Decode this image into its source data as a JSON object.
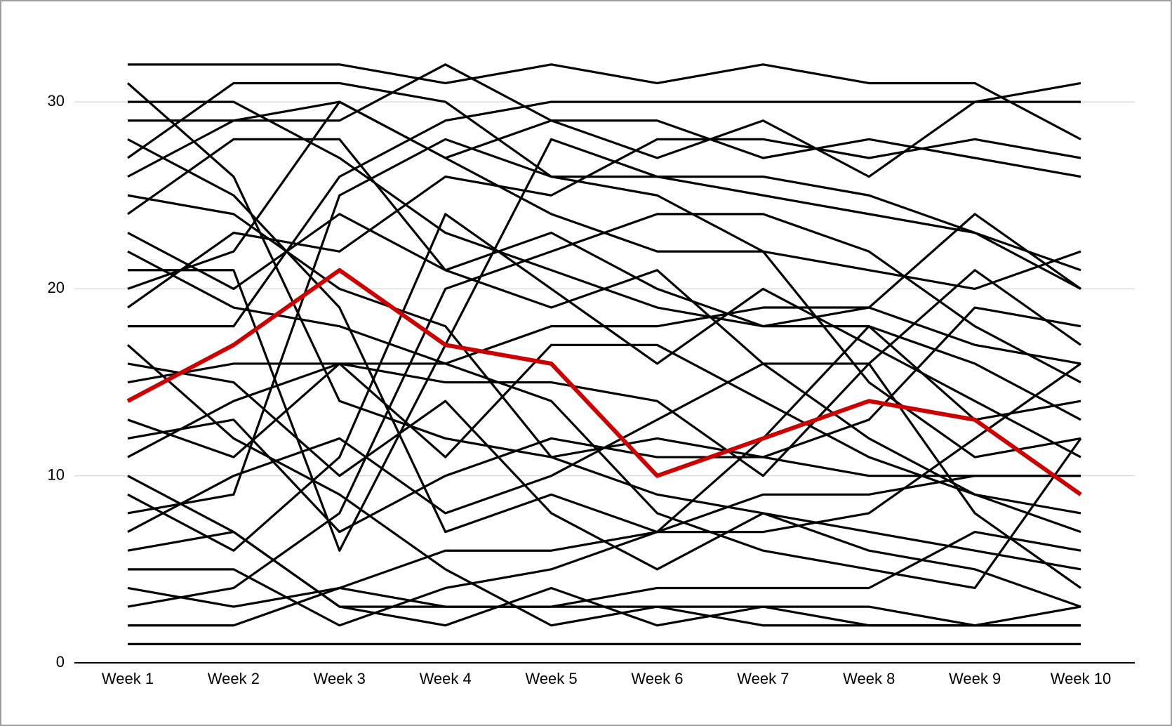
{
  "chart_data": {
    "type": "line",
    "categories": [
      "Week 1",
      "Week 2",
      "Week 3",
      "Week 4",
      "Week 5",
      "Week 6",
      "Week 7",
      "Week 8",
      "Week 9",
      "Week 10"
    ],
    "ylim": [
      0,
      33
    ],
    "yticks": [
      0,
      10,
      20,
      30
    ],
    "grid": true,
    "series": [
      {
        "color": "#000000",
        "values": [
          1,
          1,
          1,
          1,
          1,
          1,
          1,
          1,
          1,
          1
        ]
      },
      {
        "color": "#000000",
        "values": [
          2,
          2,
          4,
          6,
          6,
          7,
          7,
          8,
          12,
          16
        ]
      },
      {
        "color": "#000000",
        "values": [
          3,
          4,
          8,
          20,
          22,
          24,
          24,
          22,
          18,
          15
        ]
      },
      {
        "color": "#000000",
        "values": [
          4,
          3,
          4,
          3,
          3,
          4,
          4,
          4,
          7,
          6
        ]
      },
      {
        "color": "#000000",
        "values": [
          5,
          5,
          2,
          4,
          5,
          7,
          9,
          9,
          10,
          10
        ]
      },
      {
        "color": "#000000",
        "values": [
          6,
          7,
          3,
          2,
          4,
          2,
          3,
          2,
          2,
          2
        ]
      },
      {
        "color": "#000000",
        "values": [
          7,
          10,
          12,
          8,
          10,
          13,
          16,
          12,
          9,
          8
        ]
      },
      {
        "color": "#000000",
        "values": [
          8,
          9,
          25,
          28,
          26,
          25,
          22,
          21,
          20,
          22
        ]
      },
      {
        "color": "#000000",
        "values": [
          9,
          6,
          11,
          24,
          20,
          16,
          20,
          17,
          14,
          11
        ]
      },
      {
        "color": "#000000",
        "values": [
          10,
          7,
          3,
          3,
          3,
          3,
          3,
          3,
          2,
          2
        ]
      },
      {
        "color": "#000000",
        "values": [
          11,
          14,
          16,
          15,
          15,
          14,
          10,
          16,
          21,
          17
        ]
      },
      {
        "color": "#000000",
        "values": [
          12,
          13,
          7,
          10,
          12,
          11,
          11,
          10,
          10,
          10
        ]
      },
      {
        "color": "#000000",
        "values": [
          13,
          11,
          16,
          16,
          18,
          18,
          19,
          19,
          24,
          20
        ]
      },
      {
        "color": "#000000",
        "values": [
          15,
          16,
          16,
          11,
          17,
          17,
          14,
          11,
          9,
          7
        ]
      },
      {
        "color": "#000000",
        "values": [
          16,
          15,
          10,
          14,
          8,
          5,
          8,
          7,
          6,
          5
        ]
      },
      {
        "color": "#000000",
        "values": [
          17,
          12,
          9,
          5,
          2,
          3,
          2,
          2,
          2,
          3
        ]
      },
      {
        "color": "#000000",
        "values": [
          18,
          18,
          26,
          29,
          30,
          30,
          30,
          30,
          30,
          31
        ]
      },
      {
        "color": "#000000",
        "values": [
          19,
          23,
          22,
          26,
          25,
          28,
          28,
          27,
          28,
          27
        ]
      },
      {
        "color": "#000000",
        "values": [
          20,
          22,
          30,
          27,
          24,
          22,
          22,
          15,
          11,
          12
        ]
      },
      {
        "color": "#000000",
        "values": [
          21,
          21,
          6,
          17,
          28,
          26,
          25,
          24,
          23,
          20
        ]
      },
      {
        "color": "#000000",
        "values": [
          22,
          19,
          18,
          16,
          14,
          8,
          6,
          5,
          4,
          12
        ]
      },
      {
        "color": "#000000",
        "values": [
          23,
          20,
          24,
          21,
          19,
          21,
          16,
          16,
          8,
          4
        ]
      },
      {
        "color": "#000000",
        "values": [
          24,
          28,
          28,
          21,
          23,
          20,
          18,
          18,
          13,
          14
        ]
      },
      {
        "color": "#000000",
        "values": [
          25,
          24,
          20,
          18,
          11,
          12,
          11,
          13,
          19,
          18
        ]
      },
      {
        "color": "#000000",
        "values": [
          26,
          29,
          29,
          32,
          29,
          27,
          29,
          26,
          30,
          30
        ]
      },
      {
        "color": "#000000",
        "values": [
          27,
          31,
          31,
          30,
          26,
          26,
          26,
          25,
          23,
          21
        ]
      },
      {
        "color": "#000000",
        "values": [
          28,
          25,
          19,
          7,
          9,
          7,
          12,
          18,
          16,
          13
        ]
      },
      {
        "color": "#000000",
        "values": [
          29,
          29,
          30,
          27,
          29,
          29,
          27,
          28,
          27,
          26
        ]
      },
      {
        "color": "#000000",
        "values": [
          30,
          30,
          27,
          23,
          21,
          19,
          18,
          19,
          17,
          16
        ]
      },
      {
        "color": "#000000",
        "values": [
          31,
          26,
          14,
          12,
          11,
          9,
          8,
          6,
          5,
          3
        ]
      },
      {
        "color": "#000000",
        "values": [
          32,
          32,
          32,
          31,
          32,
          31,
          32,
          31,
          31,
          28
        ]
      },
      {
        "color": "#cc0000",
        "values": [
          14,
          17,
          21,
          17,
          16,
          10,
          12,
          14,
          13,
          9
        ]
      }
    ]
  }
}
